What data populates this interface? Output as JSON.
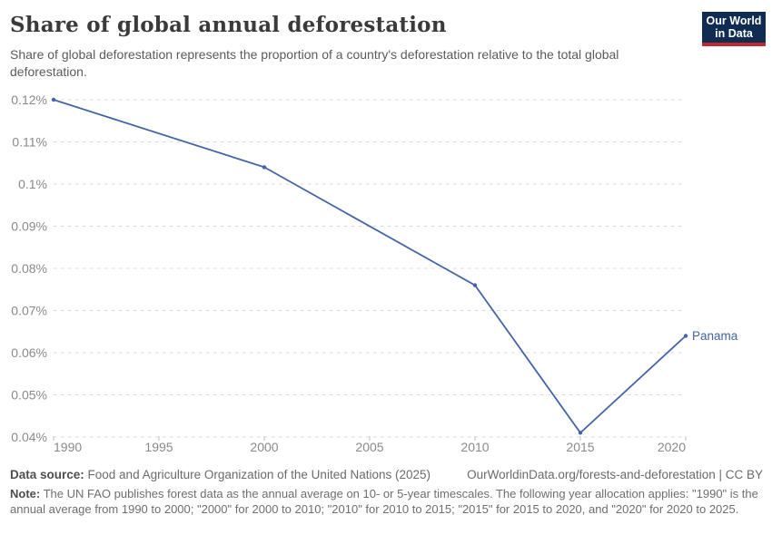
{
  "header": {
    "title": "Share of global annual deforestation",
    "subtitle": "Share of global deforestation represents the proportion of a country's deforestation relative to the total global deforestation.",
    "logo": {
      "line1": "Our World",
      "line2": "in Data",
      "bg_color": "#112c52",
      "accent_color": "#c0282f"
    }
  },
  "chart_data": {
    "type": "line",
    "title": "Share of global annual deforestation",
    "x": [
      1990,
      2000,
      2010,
      2015,
      2020
    ],
    "series": [
      {
        "name": "Panama",
        "color": "#4464a6",
        "values": [
          0.12,
          0.104,
          0.076,
          0.041,
          0.064
        ]
      }
    ],
    "unit": "%",
    "xlabel": "",
    "ylabel": "",
    "xlim": [
      1990,
      2020
    ],
    "ylim": [
      0.04,
      0.12
    ],
    "x_ticks": [
      1990,
      1995,
      2000,
      2005,
      2010,
      2015,
      2020
    ],
    "y_ticks": [
      {
        "value": 0.12,
        "label": "0.12%"
      },
      {
        "value": 0.11,
        "label": "0.11%"
      },
      {
        "value": 0.1,
        "label": "0.1%"
      },
      {
        "value": 0.09,
        "label": "0.09%"
      },
      {
        "value": 0.08,
        "label": "0.08%"
      },
      {
        "value": 0.07,
        "label": "0.07%"
      },
      {
        "value": 0.06,
        "label": "0.06%"
      },
      {
        "value": 0.05,
        "label": "0.05%"
      },
      {
        "value": 0.04,
        "label": "0.04%"
      }
    ],
    "grid": true,
    "legend_position": "end-of-line",
    "gridline_color": "#dadada",
    "tick_mark_color": "#c2c2c2",
    "axis_text_color": "#8a8a8a"
  },
  "footer": {
    "datasource_label": "Data source:",
    "datasource_text": " Food and Agriculture Organization of the United Nations (2025)",
    "link_text": "OurWorldinData.org/forests-and-deforestation | CC BY",
    "note_label": "Note:",
    "note_text": " The UN FAO publishes forest data as the annual average on 10- or 5-year timescales. The following year allocation applies: \"1990\" is the annual average from 1990 to 2000; \"2000\" for 2000 to 2010; \"2010\" for 2010 to 2015; \"2015\" for 2015 to 2020, and \"2020\" for 2020 to 2025."
  }
}
